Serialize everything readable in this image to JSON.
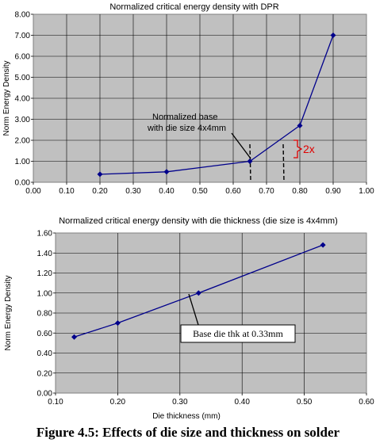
{
  "caption": "Figure 4.5: Effects of die size and thickness on solder",
  "colors": {
    "plot_bg": "#c0c0c0",
    "series": "#00008b",
    "annotation": "#e00000"
  },
  "chart_data": [
    {
      "type": "line",
      "title": "Normalized critical energy density with DPR",
      "xlabel": "",
      "ylabel": "Norm Energy Density",
      "xlim": [
        0,
        1.0
      ],
      "ylim": [
        0,
        8
      ],
      "xticks": [
        "0.00",
        "0.10",
        "0.20",
        "0.30",
        "0.40",
        "0.50",
        "0.60",
        "0.70",
        "0.80",
        "0.90",
        "1.00"
      ],
      "yticks": [
        "0.00",
        "1.00",
        "2.00",
        "3.00",
        "4.00",
        "5.00",
        "6.00",
        "7.00",
        "8.00"
      ],
      "grid": true,
      "series": [
        {
          "x": [
            0.2,
            0.4,
            0.65,
            0.8,
            0.9
          ],
          "y": [
            0.38,
            0.5,
            1.0,
            2.7,
            7.0
          ]
        }
      ],
      "annotations": [
        {
          "text": "Normalized base",
          "text2": "with die size 4x4mm",
          "x": 0.65,
          "y": 1.0
        },
        {
          "text": "2x",
          "y_from": 1.0,
          "y_to": 2.0
        }
      ],
      "dashed_lines_x": [
        0.65,
        0.75
      ]
    },
    {
      "type": "line",
      "title": "Normalized critical energy density with die thickness (die size is 4x4mm)",
      "xlabel": "Die thickness (mm)",
      "ylabel": "Norm Energy Density",
      "xlim": [
        0.1,
        0.6
      ],
      "ylim": [
        0,
        1.6
      ],
      "xticks": [
        "0.10",
        "0.20",
        "0.30",
        "0.40",
        "0.50",
        "0.60"
      ],
      "yticks": [
        "0.00",
        "0.20",
        "0.40",
        "0.60",
        "0.80",
        "1.00",
        "1.20",
        "1.40",
        "1.60"
      ],
      "grid": true,
      "series": [
        {
          "x": [
            0.13,
            0.2,
            0.33,
            0.53
          ],
          "y": [
            0.56,
            0.7,
            1.0,
            1.48
          ]
        }
      ],
      "annotations": [
        {
          "text": "Base die thk at 0.33mm",
          "x": 0.33,
          "y": 1.0
        }
      ]
    }
  ]
}
